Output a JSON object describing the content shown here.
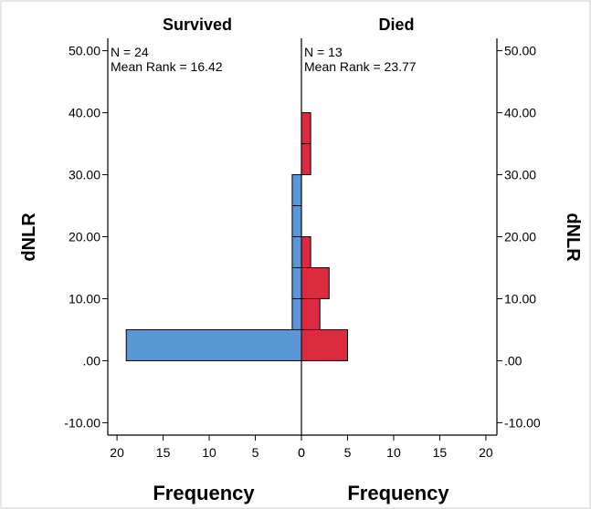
{
  "chart_data": {
    "type": "bar",
    "orientation": "horizontal",
    "layout": "back-to-back population pyramid",
    "ylabel_left": "dNLR",
    "ylabel_right": "dNLR",
    "ylim": [
      -12,
      52
    ],
    "yticks": [
      -10,
      0,
      10,
      20,
      30,
      40,
      50
    ],
    "ytick_labels": [
      "-10.00",
      ".00",
      "10.00",
      "20.00",
      "30.00",
      "40.00",
      "50.00"
    ],
    "bin_width": 5,
    "xlim_each_side": [
      0,
      21
    ],
    "xticks_left": [
      "20",
      "15",
      "10",
      "5",
      "0"
    ],
    "xticks_right": [
      "0",
      "5",
      "10",
      "15",
      "20"
    ],
    "grid": false,
    "panels": [
      {
        "name": "Survived",
        "side": "left",
        "color": "#5b97d6",
        "annotation_n": "N = 24",
        "annotation_rank": "Mean Rank = 16.42",
        "xlabel": "Frequency",
        "bins": [
          {
            "low": 0,
            "high": 5,
            "count": 19
          },
          {
            "low": 5,
            "high": 10,
            "count": 1
          },
          {
            "low": 10,
            "high": 15,
            "count": 1
          },
          {
            "low": 15,
            "high": 20,
            "count": 1
          },
          {
            "low": 20,
            "high": 25,
            "count": 1
          },
          {
            "low": 25,
            "high": 30,
            "count": 1
          }
        ]
      },
      {
        "name": "Died",
        "side": "right",
        "color": "#dc2a3e",
        "annotation_n": "N = 13",
        "annotation_rank": "Mean Rank = 23.77",
        "xlabel": "Frequency",
        "bins": [
          {
            "low": 0,
            "high": 5,
            "count": 5
          },
          {
            "low": 5,
            "high": 10,
            "count": 2
          },
          {
            "low": 10,
            "high": 15,
            "count": 3
          },
          {
            "low": 15,
            "high": 20,
            "count": 1
          },
          {
            "low": 30,
            "high": 35,
            "count": 1
          },
          {
            "low": 35,
            "high": 40,
            "count": 1
          }
        ]
      }
    ]
  }
}
